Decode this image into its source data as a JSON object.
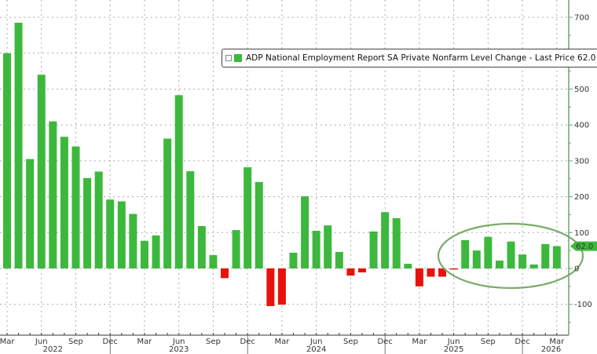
{
  "legend": {
    "label": "ADP National Employment Report SA Private Nonfarm Level Change - Last Price 62.0",
    "swatch_color": "#3cb83c"
  },
  "last_price_tag": "62.0",
  "colors": {
    "positive": "#3cb83c",
    "negative": "#e8120c",
    "axis": "#6aa86a",
    "ellipse": "#7aab6a",
    "grid": "#aaaaaa"
  },
  "chart_data": {
    "type": "bar",
    "title": "ADP National Employment Report SA Private Nonfarm Level Change - Last Price 62.0",
    "xlabel": "",
    "ylabel": "",
    "ylim": [
      -180,
      750
    ],
    "yticks": [
      -100,
      0,
      100,
      200,
      300,
      400,
      500,
      600,
      700
    ],
    "y_axis_position": "right",
    "grid": true,
    "legend_position": "top-center",
    "annotation": "Green ellipse highlighting Jul 2025 - Mar 2026 bars",
    "xtick_labels": [
      {
        "label": "Mar",
        "index": 0
      },
      {
        "label": "Jun",
        "index": 3
      },
      {
        "label": "Sep",
        "index": 6
      },
      {
        "label": "Dec",
        "index": 9
      },
      {
        "label": "Mar",
        "index": 12
      },
      {
        "label": "Jun",
        "index": 15
      },
      {
        "label": "Sep",
        "index": 18
      },
      {
        "label": "Dec",
        "index": 21
      },
      {
        "label": "Mar",
        "index": 24
      },
      {
        "label": "Jun",
        "index": 27
      },
      {
        "label": "Sep",
        "index": 30
      },
      {
        "label": "Dec",
        "index": 33
      },
      {
        "label": "Mar",
        "index": 36
      },
      {
        "label": "Jun",
        "index": 39
      },
      {
        "label": "Sep",
        "index": 42
      },
      {
        "label": "Dec",
        "index": 45
      },
      {
        "label": "Mar",
        "index": 48
      }
    ],
    "year_labels": [
      {
        "label": "2022",
        "index": 4
      },
      {
        "label": "2023",
        "index": 15
      },
      {
        "label": "2024",
        "index": 27
      },
      {
        "label": "2025",
        "index": 39
      },
      {
        "label": "2026",
        "index": 49
      }
    ],
    "categories": [
      "Mar 2022",
      "Apr 2022",
      "May 2022",
      "Jun 2022",
      "Jul 2022",
      "Aug 2022",
      "Sep 2022",
      "Oct 2022",
      "Nov 2022",
      "Dec 2022",
      "Jan 2023",
      "Feb 2023",
      "Mar 2023",
      "Apr 2023",
      "May 2023",
      "Jun 2023",
      "Jul 2023",
      "Aug 2023",
      "Sep 2023",
      "Oct 2023",
      "Nov 2023",
      "Dec 2023",
      "Jan 2024",
      "Feb 2024",
      "Mar 2024",
      "Apr 2024",
      "May 2024",
      "Jun 2024",
      "Jul 2024",
      "Aug 2024",
      "Sep 2024",
      "Oct 2024",
      "Nov 2024",
      "Dec 2024",
      "Jan 2025",
      "Feb 2025",
      "Mar 2025",
      "Apr 2025",
      "May 2025",
      "Jun 2025",
      "Jul 2025",
      "Aug 2025",
      "Sep 2025",
      "Oct 2025",
      "Nov 2025",
      "Dec 2025",
      "Jan 2026",
      "Feb 2026",
      "Mar 2026"
    ],
    "values": [
      600,
      685,
      305,
      540,
      410,
      367,
      340,
      252,
      270,
      192,
      187,
      152,
      77,
      92,
      362,
      483,
      271,
      118,
      37,
      -27,
      107,
      282,
      241,
      -105,
      -101,
      44,
      201,
      105,
      120,
      46,
      -20,
      -11,
      103,
      157,
      140,
      13,
      -50,
      -23,
      -23,
      -3,
      79,
      50,
      88,
      22,
      75,
      39,
      11,
      68,
      62
    ]
  }
}
